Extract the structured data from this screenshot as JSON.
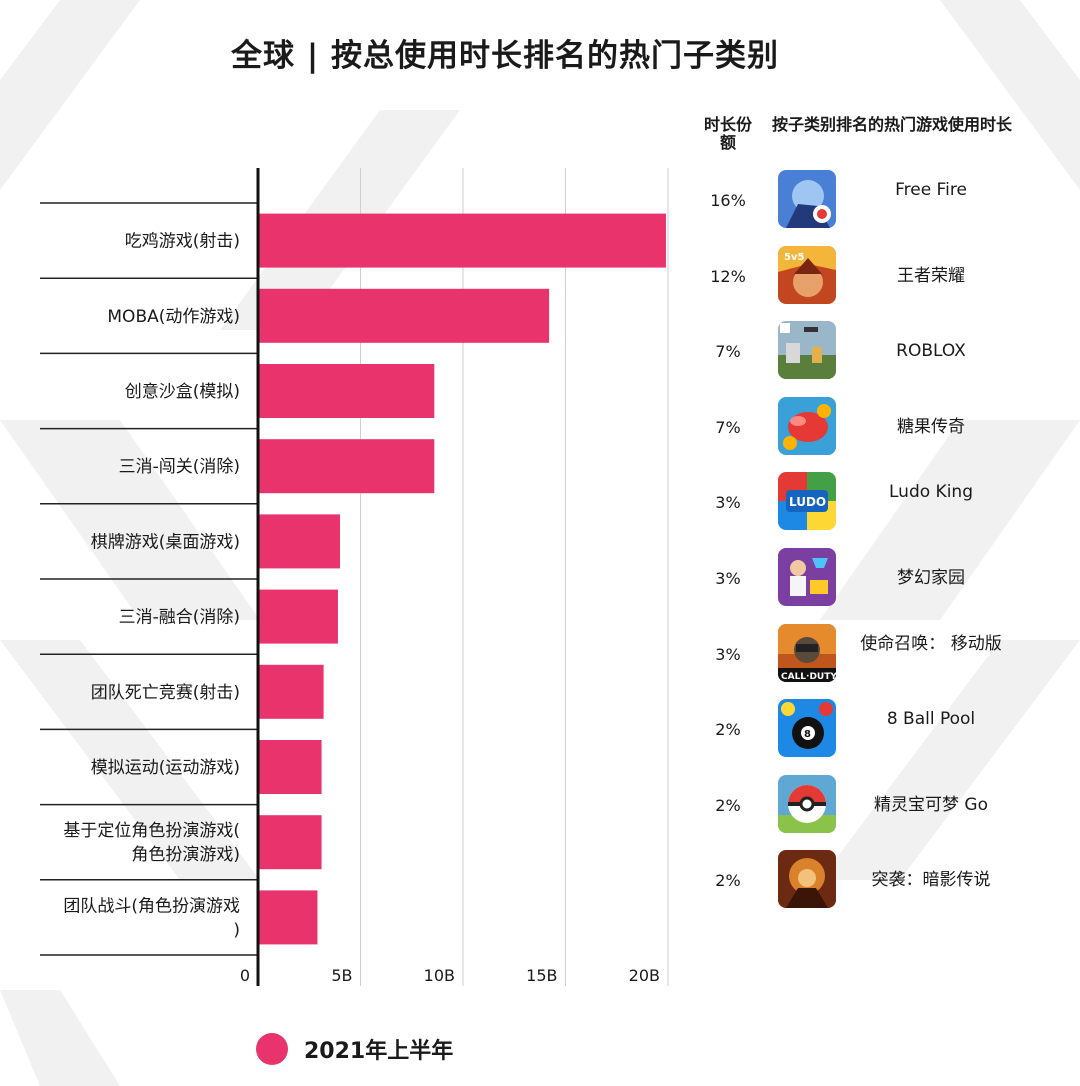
{
  "title": "全球 | 按总使用时长排名的热门子类别",
  "colors": {
    "bar": "#e8336d",
    "axis": "#111111",
    "grid": "#cfcfcf",
    "background_pattern": "#f0f0f0"
  },
  "chart_data": {
    "type": "bar",
    "orientation": "horizontal",
    "title": "全球 | 按总使用时长排名的热门子类别",
    "categories": [
      "吃鸡游戏(射击)",
      "MOBA(动作游戏)",
      "创意沙盒(模拟)",
      "三消-闯关(消除)",
      "棋牌游戏(桌面游戏)",
      "三消-融合(消除)",
      "团队死亡竞赛(射击)",
      "模拟运动(运动游戏)",
      "基于定位角色扮演游戏(角色扮演游戏)",
      "团队战斗(角色扮演游戏)"
    ],
    "category_lines": [
      [
        "吃鸡游戏(射击)"
      ],
      [
        "MOBA(动作游戏)"
      ],
      [
        "创意沙盒(模拟)"
      ],
      [
        "三消-闯关(消除)"
      ],
      [
        "棋牌游戏(桌面游戏)"
      ],
      [
        "三消-融合(消除)"
      ],
      [
        "团队死亡竞赛(射击)"
      ],
      [
        "模拟运动(运动游戏)"
      ],
      [
        "基于定位角色扮演游戏(",
        "角色扮演游戏)"
      ],
      [
        "团队战斗(角色扮演游戏",
        ")"
      ]
    ],
    "series": [
      {
        "name": "2021年上半年",
        "values": [
          19.9,
          14.2,
          8.6,
          8.6,
          4.0,
          3.9,
          3.2,
          3.1,
          3.1,
          2.9
        ]
      }
    ],
    "xlim": [
      0,
      20
    ],
    "xticks": [
      0,
      5,
      10,
      15,
      20
    ],
    "xtick_labels": [
      "0",
      "5B",
      "10B",
      "15B",
      "20B"
    ],
    "grid": true,
    "legend": "bottom-left"
  },
  "table": {
    "header_share": "时长份额",
    "header_game": "按子类别排名的热门游戏使用时长",
    "rows": [
      {
        "share": "16%",
        "game": "Free Fire",
        "icon": "free-fire-icon"
      },
      {
        "share": "12%",
        "game": "王者荣耀",
        "icon": "honor-of-kings-icon"
      },
      {
        "share": "7%",
        "game": "ROBLOX",
        "icon": "roblox-icon"
      },
      {
        "share": "7%",
        "game": "糖果传奇",
        "icon": "candy-crush-icon"
      },
      {
        "share": "3%",
        "game": "Ludo King",
        "icon": "ludo-king-icon"
      },
      {
        "share": "3%",
        "game": "梦幻家园",
        "icon": "homescapes-icon"
      },
      {
        "share": "3%",
        "game": "使命召唤： 移动版",
        "icon": "call-of-duty-icon"
      },
      {
        "share": "2%",
        "game": "8 Ball Pool",
        "icon": "8-ball-pool-icon"
      },
      {
        "share": "2%",
        "game": "精灵宝可梦 Go",
        "icon": "pokemon-go-icon"
      },
      {
        "share": "2%",
        "game": "突袭：暗影传说",
        "icon": "raid-shadow-legends-icon"
      }
    ]
  },
  "legend": {
    "label": "2021年上半年"
  }
}
